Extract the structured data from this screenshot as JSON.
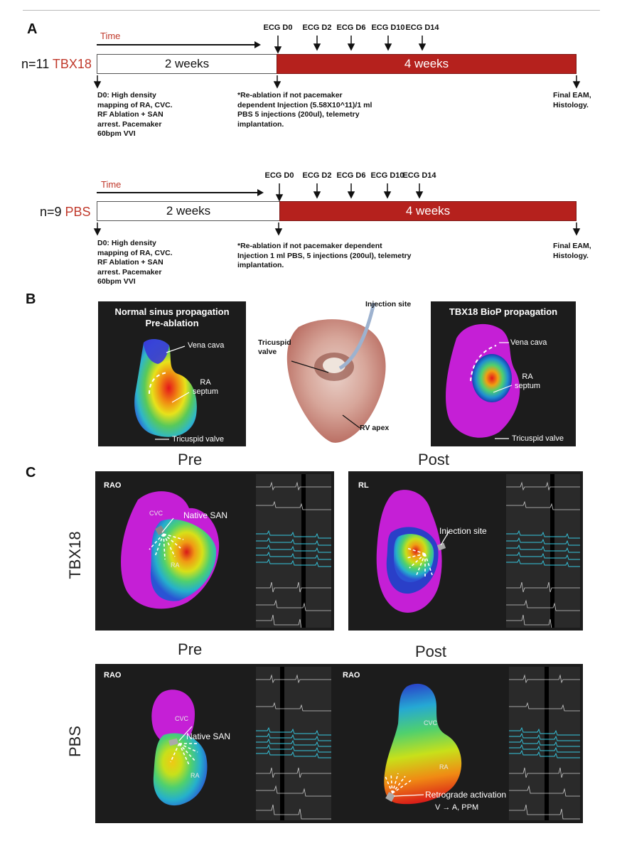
{
  "figure": {
    "panel_a": {
      "label": "A",
      "timeline_tbx18": {
        "time_label": "Time",
        "cohort_prefix": "n=11 ",
        "cohort_name": "TBX18",
        "phase1": "2 weeks",
        "phase2": "4 weeks",
        "ecg_labels": [
          "ECG D0",
          "ECG D2",
          "ECG D6",
          "ECG D10",
          "ECG D14"
        ],
        "note_left": [
          "D0: High density",
          "mapping of RA, CVC.",
          "RF Ablation + SAN",
          "arrest. Pacemaker",
          "60bpm VVI"
        ],
        "note_mid": [
          "*Re-ablation if not pacemaker",
          "dependent Injection (5.58X10^11)/1 ml",
          "PBS 5 injections (200ul), telemetry",
          "implantation."
        ],
        "note_right": [
          "Final EAM,",
          "Histology."
        ]
      },
      "timeline_pbs": {
        "time_label": "Time",
        "cohort_prefix": "n=9 ",
        "cohort_name": "PBS",
        "phase1": "2 weeks",
        "phase2": "4 weeks",
        "ecg_labels": [
          "ECG D0",
          "ECG D2",
          "ECG D6",
          "ECG D10",
          "ECG D14"
        ],
        "note_left": [
          "D0: High density",
          "mapping of RA, CVC.",
          "RF Ablation + SAN",
          "arrest. Pacemaker",
          "60bpm VVI"
        ],
        "note_mid": [
          "*Re-ablation if not pacemaker dependent",
          "Injection 1 ml PBS, 5 injections (200ul), telemetry",
          "implantation."
        ],
        "note_right": [
          "Final EAM,",
          "Histology."
        ]
      }
    },
    "panel_b": {
      "label": "B",
      "left": {
        "title1": "Normal sinus propagation",
        "title2": "Pre-ablation",
        "vena_cava": "Vena cava",
        "ra_septum1": "RA",
        "ra_septum2": "septum",
        "tricuspid": "Tricuspid valve"
      },
      "middle": {
        "injection_site": "Injection site",
        "tricuspid1": "Tricuspid",
        "tricuspid2": "valve",
        "rv_apex": "RV apex"
      },
      "right": {
        "title": "TBX18 BioP propagation",
        "vena_cava": "Vena cava",
        "ra_septum1": "RA",
        "ra_septum2": "septum",
        "tricuspid": "Tricuspid valve"
      }
    },
    "panel_c": {
      "label": "C",
      "pre_label": "Pre",
      "post_label": "Post",
      "row_tbx18": "TBX18",
      "row_pbs": "PBS",
      "tbx_pre": {
        "view": "RAO",
        "cvc": "CVC",
        "native_san": "Native SAN",
        "ra": "RA"
      },
      "tbx_post": {
        "view": "RL",
        "injection_site": "Injection site"
      },
      "pbs_pre": {
        "view": "RAO",
        "cvc": "CVC",
        "native_san": "Native SAN",
        "ra": "RA"
      },
      "pbs_post": {
        "view": "RAO",
        "cvc": "CVC",
        "ra": "RA",
        "retro1": "Retrograde activation",
        "retro2": "V → A, PPM"
      }
    }
  },
  "colors": {
    "accent_red": "#b5211d",
    "label_red": "#c0392b",
    "panel_bg": "#1c1c1c"
  }
}
